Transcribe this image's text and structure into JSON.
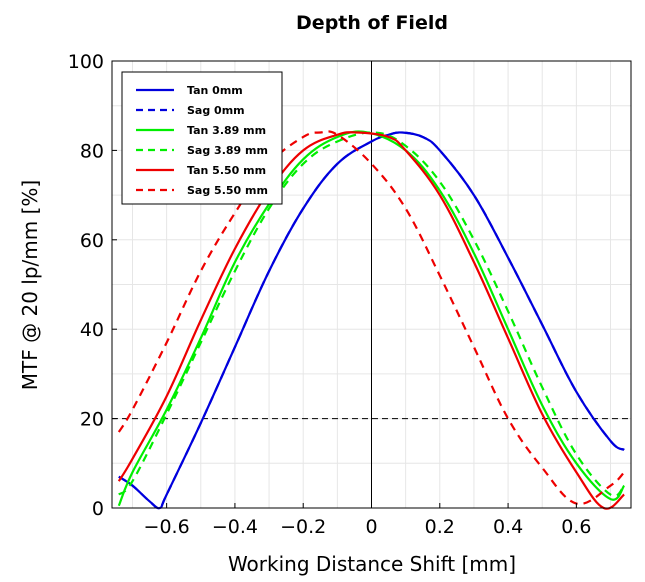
{
  "chart_data": {
    "type": "line",
    "title": "Depth of Field",
    "xlabel": "Working Distance Shift [mm]",
    "ylabel": "MTF @ 20 lp/mm [%]",
    "xlim": [
      -0.76,
      0.76
    ],
    "ylim": [
      0,
      100
    ],
    "xticks": [
      -0.6,
      -0.4,
      -0.2,
      0,
      0.2,
      0.4,
      0.6
    ],
    "xtick_labels": [
      "−0.6",
      "−0.4",
      "−0.2",
      "0",
      "0.2",
      "0.4",
      "0.6"
    ],
    "yticks": [
      0,
      20,
      40,
      60,
      80,
      100
    ],
    "ytick_labels": [
      "0",
      "20",
      "40",
      "60",
      "80",
      "100"
    ],
    "grid": true,
    "legend_position": "top-left",
    "reference_lines": {
      "horizontal_y": 20,
      "vertical_x": 0
    },
    "series": [
      {
        "name": "Tan 0mm",
        "color": "#0000dd",
        "dashed": false,
        "peak_x": 0.09,
        "peak_y": 84,
        "edge_x": 0.71,
        "x": [
          -0.74,
          -0.7,
          -0.65,
          -0.62,
          -0.6,
          -0.5,
          -0.4,
          -0.3,
          -0.2,
          -0.1,
          0,
          0.05,
          0.09,
          0.15,
          0.2,
          0.3,
          0.4,
          0.5,
          0.6,
          0.7,
          0.74
        ],
        "y": [
          7,
          5,
          1.5,
          0,
          3,
          19,
          36,
          53,
          67,
          77,
          82,
          83.5,
          84,
          83,
          80,
          70,
          56,
          41,
          26,
          15,
          13
        ]
      },
      {
        "name": "Sag 0mm",
        "color": "#0000dd",
        "dashed": true,
        "peak_x": 0.09,
        "peak_y": 84,
        "edge_x": 0.71,
        "x": [
          -0.74,
          -0.7,
          -0.65,
          -0.62,
          -0.6,
          -0.5,
          -0.4,
          -0.3,
          -0.2,
          -0.1,
          0,
          0.05,
          0.09,
          0.15,
          0.2,
          0.3,
          0.4,
          0.5,
          0.6,
          0.7,
          0.74
        ],
        "y": [
          7,
          5,
          1.5,
          0,
          3,
          19,
          36,
          53,
          67,
          77,
          82,
          83.5,
          84,
          83,
          80,
          70,
          56,
          41,
          26,
          15,
          13
        ]
      },
      {
        "name": "Tan 3.89 mm",
        "color": "#00ee00",
        "dashed": false,
        "peak_x": -0.01,
        "peak_y": 84,
        "edge_x": 0.59,
        "x": [
          -0.74,
          -0.7,
          -0.6,
          -0.5,
          -0.4,
          -0.3,
          -0.2,
          -0.1,
          -0.01,
          0.1,
          0.2,
          0.3,
          0.4,
          0.5,
          0.6,
          0.7,
          0.74
        ],
        "y": [
          0.5,
          8,
          22,
          38,
          55,
          68,
          78,
          83,
          84,
          80,
          71,
          57,
          40,
          23,
          10,
          2,
          5
        ]
      },
      {
        "name": "Sag 3.89 mm",
        "color": "#00ee00",
        "dashed": true,
        "peak_x": 0.01,
        "peak_y": 84,
        "edge_x": 0.62,
        "x": [
          -0.74,
          -0.7,
          -0.6,
          -0.5,
          -0.4,
          -0.3,
          -0.2,
          -0.1,
          0.01,
          0.1,
          0.2,
          0.3,
          0.4,
          0.5,
          0.6,
          0.7,
          0.74
        ],
        "y": [
          3,
          6,
          21,
          37,
          53,
          67,
          77,
          82,
          84,
          81,
          73,
          60,
          44,
          27,
          12,
          3,
          5
        ]
      },
      {
        "name": "Tan 5.50 mm",
        "color": "#ee0000",
        "dashed": false,
        "peak_x": -0.04,
        "peak_y": 84,
        "edge_x": 0.57,
        "x": [
          -0.74,
          -0.7,
          -0.6,
          -0.5,
          -0.4,
          -0.3,
          -0.2,
          -0.1,
          -0.04,
          0.05,
          0.1,
          0.2,
          0.3,
          0.4,
          0.5,
          0.6,
          0.68,
          0.74
        ],
        "y": [
          6,
          11,
          25,
          42,
          58,
          71,
          80,
          83.5,
          84,
          83,
          80,
          70,
          55,
          38,
          21,
          8,
          0,
          3
        ]
      },
      {
        "name": "Sag 5.50 mm",
        "color": "#ee0000",
        "dashed": true,
        "peak_x": -0.15,
        "peak_y": 84,
        "edge_x": 0.47,
        "x": [
          -0.74,
          -0.7,
          -0.6,
          -0.5,
          -0.4,
          -0.3,
          -0.2,
          -0.15,
          -0.1,
          0,
          0.1,
          0.2,
          0.3,
          0.4,
          0.5,
          0.6,
          0.7,
          0.74
        ],
        "y": [
          17,
          22,
          37,
          53,
          66,
          77,
          83,
          84,
          83.5,
          77,
          67,
          52,
          36,
          20,
          9,
          1,
          5,
          8
        ]
      }
    ]
  }
}
